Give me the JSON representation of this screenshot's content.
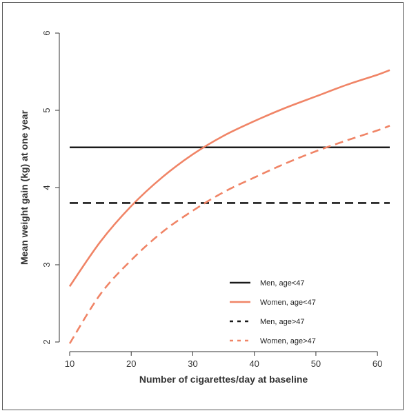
{
  "chart_data": {
    "type": "line",
    "xlabel": "Number of cigarettes/day at baseline",
    "ylabel": "Mean weight gain (kg) at one year",
    "xlim": [
      10,
      62
    ],
    "ylim": [
      2,
      6
    ],
    "x_ticks": [
      10,
      20,
      30,
      40,
      50,
      60
    ],
    "y_ticks": [
      2,
      3,
      4,
      5,
      6
    ],
    "grid": false,
    "legend_position": "bottom-right",
    "colors": {
      "men": "#1a1a1a",
      "women": "#f08466"
    },
    "series": [
      {
        "name": "Men, age<47",
        "style": "solid",
        "color": "#1a1a1a",
        "x": [
          10,
          62
        ],
        "y": [
          4.52,
          4.52
        ]
      },
      {
        "name": "Women, age<47",
        "style": "solid",
        "color": "#f08466",
        "x": [
          10,
          15,
          20,
          25,
          30,
          35,
          40,
          45,
          50,
          55,
          60,
          62
        ],
        "y": [
          2.72,
          3.3,
          3.76,
          4.13,
          4.43,
          4.67,
          4.86,
          5.03,
          5.18,
          5.33,
          5.46,
          5.52
        ]
      },
      {
        "name": "Men, age>47",
        "style": "dashed",
        "color": "#1a1a1a",
        "x": [
          10,
          62
        ],
        "y": [
          3.8,
          3.8
        ]
      },
      {
        "name": "Women, age>47",
        "style": "dashed",
        "color": "#f08466",
        "x": [
          10,
          15,
          20,
          25,
          30,
          35,
          40,
          45,
          50,
          55,
          60,
          62
        ],
        "y": [
          1.98,
          2.62,
          3.06,
          3.42,
          3.7,
          3.94,
          4.13,
          4.31,
          4.47,
          4.61,
          4.74,
          4.8
        ]
      }
    ]
  }
}
